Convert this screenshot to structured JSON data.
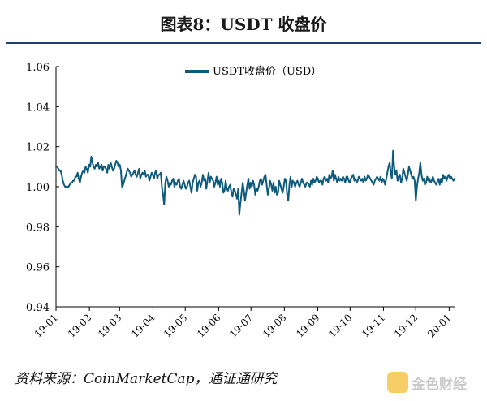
{
  "figure": {
    "title": "图表8：USDT 收盘价",
    "source": "资料来源：CoinMarketCap，通证通研究",
    "watermark": "金色财经"
  },
  "colors": {
    "line": "#0e5a7c",
    "rule": "#1f3f6e",
    "axis": "#000000"
  },
  "chart_data": {
    "type": "line",
    "title": "",
    "xlabel": "",
    "ylabel": "",
    "ylim": [
      0.94,
      1.06
    ],
    "y_ticks": [
      "1.06",
      "1.04",
      "1.02",
      "1.00",
      "0.98",
      "0.96",
      "0.94"
    ],
    "x_ticks": [
      "19-01",
      "19-02",
      "19-03",
      "19-04",
      "19-05",
      "19-06",
      "19-07",
      "19-08",
      "19-09",
      "19-10",
      "19-11",
      "19-12",
      "20-01"
    ],
    "grid": false,
    "legend_position": "top-center",
    "series": [
      {
        "name": "USDT收盘价（USD）",
        "x_start": "2019-01-01",
        "x_end": "2020-01-06",
        "values": [
          1.01,
          1.01,
          1.009,
          1.008,
          1.008,
          1.006,
          1.003,
          1.001,
          1.0,
          1.0,
          1.0,
          1.0,
          1.001,
          1.002,
          1.002,
          1.003,
          1.003,
          1.005,
          1.005,
          1.007,
          1.004,
          1.002,
          1.005,
          1.007,
          1.008,
          1.007,
          1.01,
          1.009,
          1.007,
          1.011,
          1.01,
          1.015,
          1.012,
          1.01,
          1.009,
          1.011,
          1.01,
          1.012,
          1.009,
          1.01,
          1.011,
          1.008,
          1.01,
          1.01,
          1.009,
          1.007,
          1.011,
          1.009,
          1.012,
          1.01,
          1.008,
          1.009,
          1.011,
          1.013,
          1.012,
          1.01,
          1.011,
          1.008,
          1.0,
          1.001,
          1.003,
          1.005,
          1.007,
          1.009,
          1.008,
          1.007,
          1.005,
          1.006,
          1.007,
          1.008,
          1.006,
          1.005,
          1.007,
          1.009,
          1.004,
          1.006,
          1.007,
          1.006,
          1.008,
          1.005,
          1.006,
          1.006,
          1.003,
          1.005,
          1.007,
          1.006,
          1.004,
          1.007,
          1.008,
          1.004,
          1.006,
          1.006,
          1.007,
          1.0,
          0.996,
          0.991,
          1.002,
          1.005,
          1.003,
          1.0,
          1.002,
          1.001,
          1.003,
          1.004,
          1.0,
          1.002,
          1.001,
          1.003,
          1.004,
          1.0,
          0.999,
          1.001,
          1.003,
          1.001,
          0.999,
          1.0,
          1.002,
          1.003,
          1.0,
          0.997,
          1.002,
          1.004,
          1.006,
          1.005,
          0.998,
          1.002,
          1.003,
          1.0,
          1.002,
          1.006,
          1.003,
          1.004,
          0.999,
          1.003,
          1.007,
          1.002,
          1.005,
          1.004,
          1.003,
          1.0,
          1.002,
          1.005,
          1.001,
          1.003,
          1.0,
          1.004,
          1.002,
          0.997,
          0.998,
          1.003,
          0.999,
          0.998,
          1.0,
          1.001,
          0.997,
          0.995,
          0.999,
          0.998,
          0.996,
          0.994,
          0.999,
          0.986,
          0.992,
          0.997,
          1.002,
          0.998,
          0.993,
          0.997,
          1.001,
          1.004,
          0.999,
          1.002,
          1.0,
          1.003,
          1.001,
          0.996,
          0.999,
          0.998,
          1.0,
          1.003,
          1.004,
          1.001,
          1.003,
          1.005,
          1.006,
          1.001,
          0.996,
          0.999,
          1.003,
          1.001,
          0.998,
          1.002,
          0.997,
          1.0,
          0.996,
          0.997,
          1.003,
          1.001,
          0.999,
          0.997,
          1.0,
          1.004,
          1.003,
          0.996,
          0.993,
          1.001,
          1.005,
          1.0,
          1.003,
          1.002,
          1.0,
          1.002,
          1.003,
          1.001,
          1.0,
          1.002,
          1.004,
          1.002,
          1.001,
          1.0,
          1.002,
          1.002,
          1.001,
          1.0,
          1.003,
          1.001,
          1.004,
          1.002,
          1.003,
          1.005,
          1.004,
          1.002,
          1.003,
          1.003,
          1.001,
          1.004,
          1.005,
          1.003,
          1.004,
          1.002,
          1.006,
          1.004,
          1.005,
          1.008,
          1.003,
          1.006,
          1.004,
          1.002,
          1.005,
          1.003,
          1.004,
          1.003,
          1.005,
          1.004,
          1.002,
          1.005,
          1.005,
          1.003,
          1.002,
          1.004,
          1.005,
          1.006,
          1.003,
          1.004,
          1.002,
          1.003,
          1.005,
          1.004,
          1.003,
          1.004,
          1.002,
          1.005,
          1.003,
          1.004,
          1.006,
          1.005,
          1.004,
          1.003,
          1.002,
          1.001,
          1.003,
          1.004,
          1.005,
          1.004,
          1.003,
          1.005,
          1.002,
          1.004,
          1.003,
          1.001,
          1.004,
          1.007,
          1.01,
          1.012,
          1.007,
          1.004,
          1.018,
          1.01,
          1.006,
          1.008,
          1.003,
          1.005,
          1.006,
          1.002,
          1.004,
          1.009,
          1.007,
          1.005,
          1.003,
          1.006,
          1.01,
          1.008,
          1.006,
          1.004,
          1.005,
          1.003,
          0.993,
          1.0,
          1.004,
          1.007,
          1.012,
          1.006,
          1.003,
          1.004,
          1.001,
          1.002,
          1.005,
          1.003,
          1.004,
          1.002,
          1.003,
          1.005,
          1.003,
          1.002,
          1.001,
          1.003,
          1.004,
          1.001,
          1.004,
          1.002,
          1.006,
          1.004,
          1.005,
          1.003,
          1.005,
          1.006,
          1.004,
          1.005,
          1.004,
          1.003,
          1.004
        ]
      }
    ]
  }
}
